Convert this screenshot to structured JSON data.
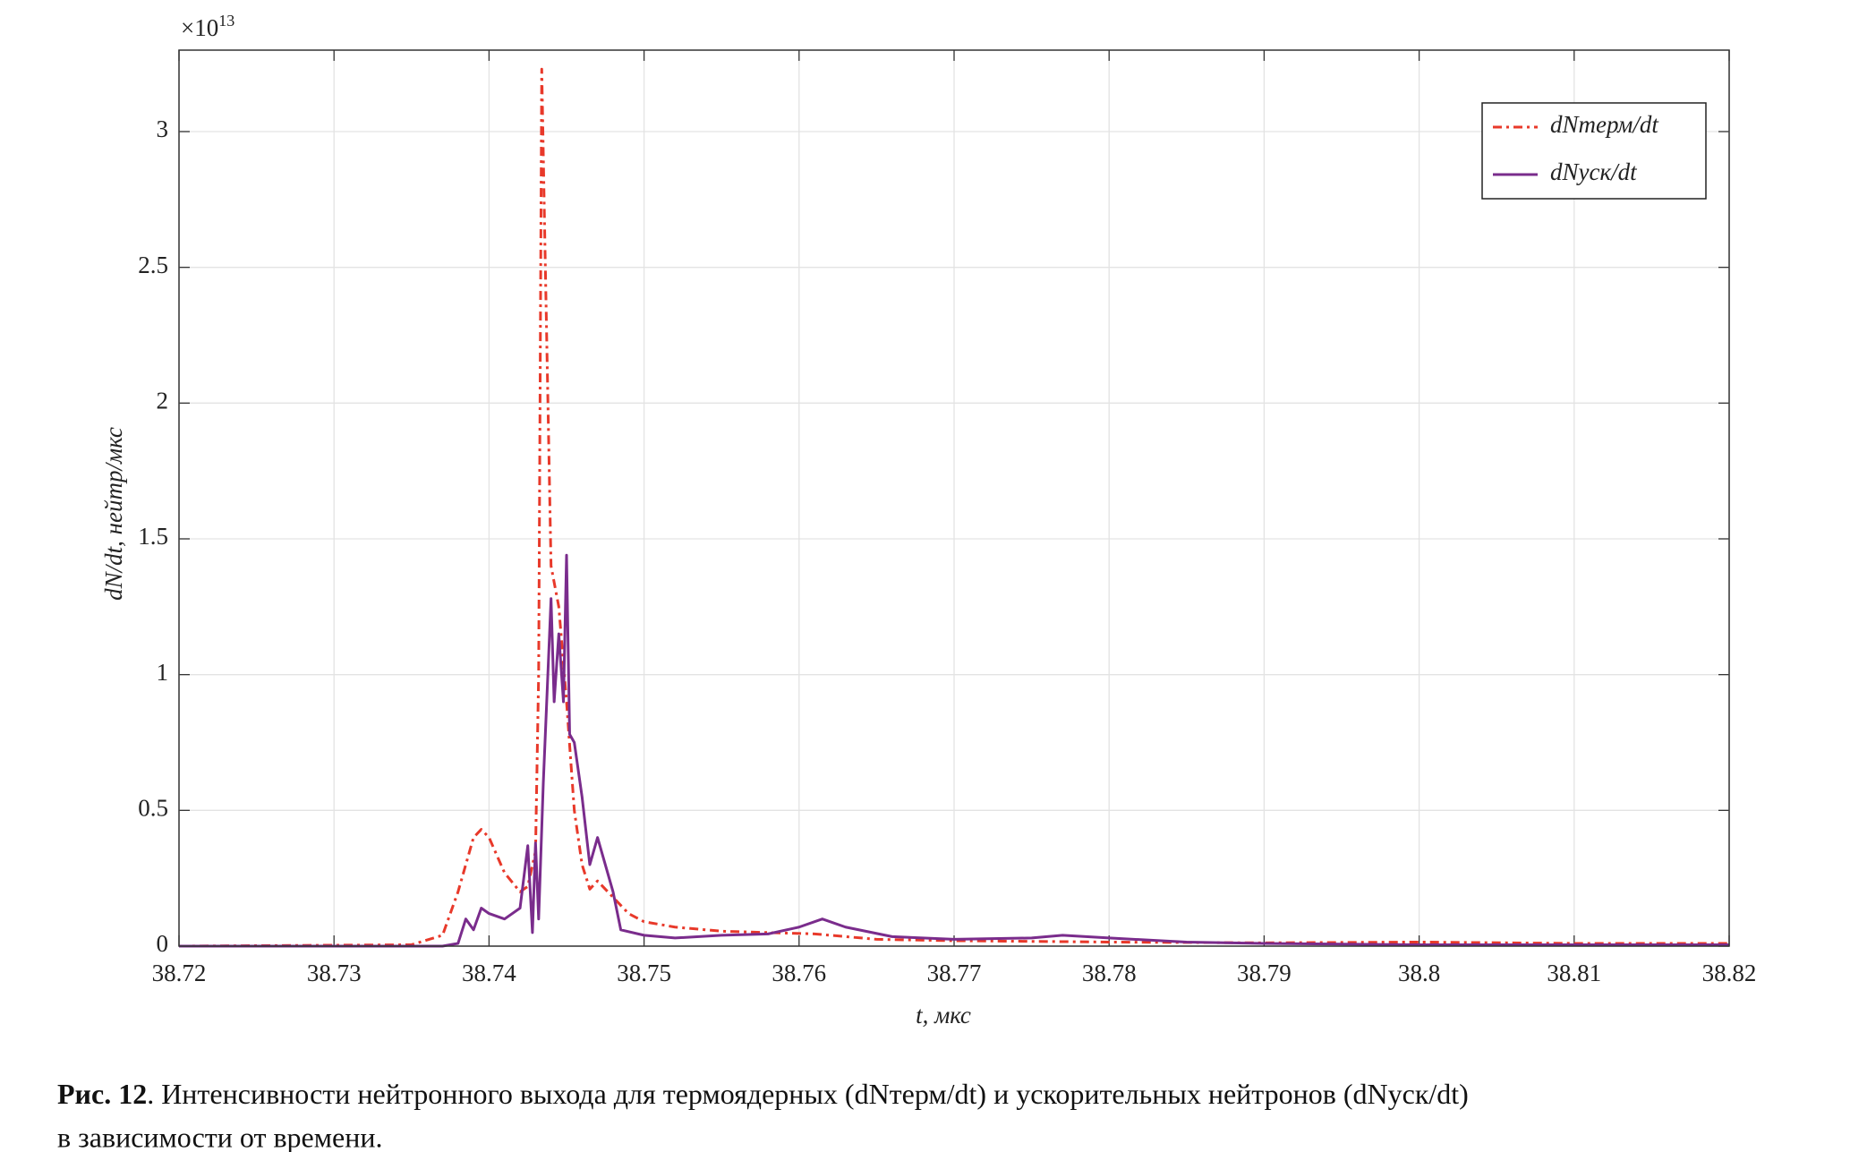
{
  "chart_data": {
    "type": "line",
    "y_multiplier": "×10",
    "y_exponent": "13",
    "x_label": "t, мкс",
    "y_label": "dN/dt, нейтр/мкс",
    "xlim": [
      38.72,
      38.82
    ],
    "xticks": [
      38.72,
      38.73,
      38.74,
      38.75,
      38.76,
      38.77,
      38.78,
      38.79,
      38.8,
      38.81,
      38.82
    ],
    "ylim": [
      0,
      3.3
    ],
    "yticks": [
      0,
      0.5,
      1,
      1.5,
      2,
      2.5,
      3
    ],
    "grid": true,
    "legend": "upper right",
    "series": [
      {
        "name": "dNтерм/dt",
        "color": "#e8392a",
        "dash": "dashdot",
        "x": [
          38.72,
          38.735,
          38.737,
          38.738,
          38.739,
          38.7395,
          38.74,
          38.741,
          38.742,
          38.7425,
          38.743,
          38.7432,
          38.7434,
          38.7436,
          38.744,
          38.7445,
          38.745,
          38.7455,
          38.746,
          38.7465,
          38.747,
          38.748,
          38.749,
          38.75,
          38.752,
          38.755,
          38.758,
          38.761,
          38.765,
          38.77,
          38.78,
          38.79,
          38.8,
          38.81,
          38.82
        ],
        "values": [
          0,
          0.005,
          0.04,
          0.2,
          0.4,
          0.43,
          0.4,
          0.27,
          0.2,
          0.22,
          0.35,
          1.0,
          3.23,
          2.6,
          1.4,
          1.25,
          0.9,
          0.5,
          0.3,
          0.21,
          0.24,
          0.18,
          0.12,
          0.09,
          0.07,
          0.055,
          0.05,
          0.045,
          0.025,
          0.02,
          0.015,
          0.012,
          0.015,
          0.01,
          0.01
        ]
      },
      {
        "name": "dNуск/dt",
        "color": "#7a2c8c",
        "dash": "solid",
        "x": [
          38.72,
          38.737,
          38.738,
          38.7385,
          38.739,
          38.7395,
          38.74,
          38.741,
          38.742,
          38.7425,
          38.7428,
          38.743,
          38.7432,
          38.7435,
          38.744,
          38.7442,
          38.7445,
          38.7448,
          38.745,
          38.7452,
          38.7455,
          38.746,
          38.7465,
          38.747,
          38.748,
          38.7485,
          38.75,
          38.752,
          38.755,
          38.758,
          38.76,
          38.7615,
          38.763,
          38.766,
          38.77,
          38.775,
          38.777,
          38.78,
          38.785,
          38.79,
          38.8,
          38.82
        ],
        "values": [
          0,
          0,
          0.01,
          0.1,
          0.06,
          0.14,
          0.12,
          0.1,
          0.14,
          0.37,
          0.05,
          0.38,
          0.1,
          0.6,
          1.28,
          0.9,
          1.15,
          0.9,
          1.44,
          0.78,
          0.75,
          0.55,
          0.3,
          0.4,
          0.2,
          0.06,
          0.04,
          0.03,
          0.04,
          0.045,
          0.07,
          0.1,
          0.07,
          0.035,
          0.025,
          0.03,
          0.04,
          0.03,
          0.015,
          0.01,
          0.005,
          0.005
        ]
      }
    ]
  },
  "caption_label": "Рис. 12",
  "caption_lines": [
    ". Интенсивности нейтронного выхода для термоядерных (dNтерм/dt) и ускорительных нейтронов (dNуск/dt)",
    "в зависимости от времени."
  ]
}
